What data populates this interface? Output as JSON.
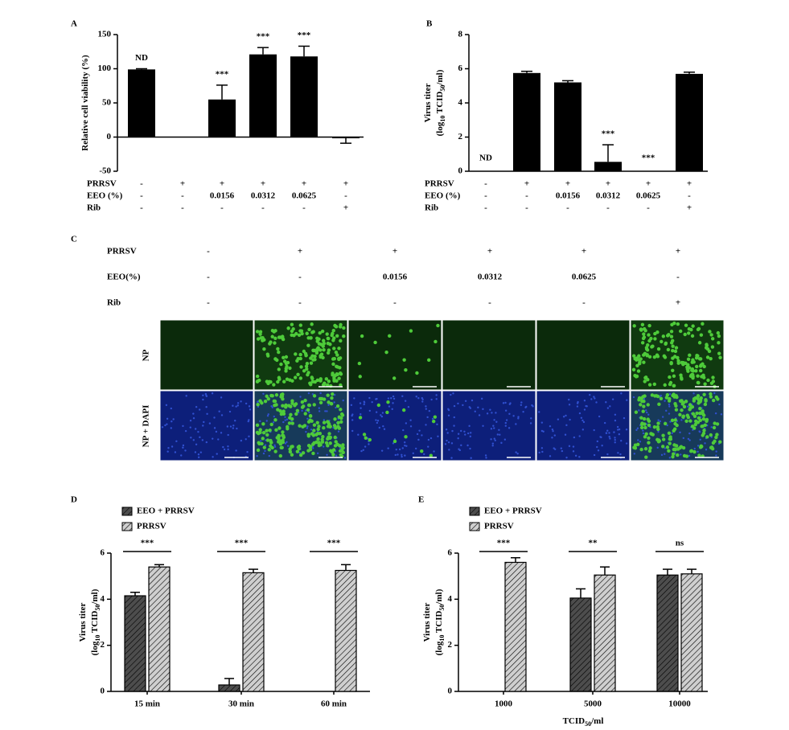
{
  "chart_data": [
    {
      "type": "bar",
      "panel": "A",
      "ylabel": [
        [
          "Relative cell viability (%)"
        ]
      ],
      "categories": [
        null,
        null,
        null,
        null,
        null,
        null
      ],
      "values": [
        99,
        null,
        55,
        121,
        118,
        -1
      ],
      "errors": [
        1,
        null,
        21,
        10,
        15,
        8
      ],
      "color": "#000000",
      "significance": [
        "ND",
        null,
        "***",
        "***",
        "***",
        null
      ],
      "conditions": [
        {
          "label": "PRRSV",
          "values": [
            "-",
            "+",
            "+",
            "+",
            "+",
            "+"
          ]
        },
        {
          "label": "EEO (%)",
          "values": [
            "-",
            "-",
            "0.0156",
            "0.0312",
            "0.0625",
            "-"
          ]
        },
        {
          "label": "Rib",
          "values": [
            "-",
            "-",
            "-",
            "-",
            "-",
            "+"
          ]
        }
      ],
      "ylim": [
        -50,
        150
      ],
      "yticks": [
        -50,
        0,
        50,
        100,
        150
      ]
    },
    {
      "type": "bar",
      "panel": "B",
      "ylabel": [
        [
          "Virus titer"
        ],
        [
          "(log",
          "10",
          " TCID",
          "50",
          "/ml)"
        ]
      ],
      "categories": [
        null,
        null,
        null,
        null,
        null,
        null
      ],
      "values": [
        null,
        5.75,
        5.2,
        0.55,
        null,
        5.7
      ],
      "errors": [
        null,
        0.1,
        0.1,
        1.0,
        null,
        0.1
      ],
      "color": "#000000",
      "significance": [
        "ND",
        null,
        null,
        "***",
        "***",
        null
      ],
      "conditions": [
        {
          "label": "PRRSV",
          "values": [
            "-",
            "+",
            "+",
            "+",
            "+",
            "+"
          ]
        },
        {
          "label": "EEO (%)",
          "values": [
            "-",
            "-",
            "0.0156",
            "0.0312",
            "0.0625",
            "-"
          ]
        },
        {
          "label": "Rib",
          "values": [
            "-",
            "-",
            "-",
            "-",
            "-",
            "+"
          ]
        }
      ],
      "ylim": [
        0,
        8
      ],
      "yticks": [
        0,
        2,
        4,
        6,
        8
      ]
    },
    {
      "type": "bar",
      "panel": "D",
      "ylabel": [
        [
          "Virus titer"
        ],
        [
          "(log",
          "10",
          " TCID",
          "50",
          "/ml)"
        ]
      ],
      "categories": [
        "15 min",
        "30 min",
        "60 min"
      ],
      "series": [
        {
          "name": "EEO + PRRSV",
          "color": "#4d4d4d",
          "values": [
            4.15,
            0.28,
            null
          ],
          "errors": [
            0.15,
            0.28,
            null
          ]
        },
        {
          "name": "PRRSV",
          "color": "#cfcfcf",
          "values": [
            5.4,
            5.15,
            5.25
          ],
          "errors": [
            0.1,
            0.15,
            0.25
          ]
        }
      ],
      "significance": [
        "***",
        "***",
        "***"
      ],
      "ylim": [
        0,
        6
      ],
      "yticks": [
        0,
        2,
        4,
        6
      ]
    },
    {
      "type": "bar",
      "panel": "E",
      "ylabel": [
        [
          "Virus titer"
        ],
        [
          "(log",
          "10",
          " TCID",
          "50",
          "/ml)"
        ]
      ],
      "xlabel": [
        "TCID",
        "50",
        "/ml"
      ],
      "categories": [
        "1000",
        "5000",
        "10000"
      ],
      "series": [
        {
          "name": "EEO + PRRSV",
          "color": "#4d4d4d",
          "values": [
            null,
            4.05,
            5.05
          ],
          "errors": [
            null,
            0.4,
            0.25
          ]
        },
        {
          "name": "PRRSV",
          "color": "#cfcfcf",
          "values": [
            5.6,
            5.05,
            5.1
          ],
          "errors": [
            0.2,
            0.35,
            0.2
          ]
        }
      ],
      "significance": [
        "***",
        "**",
        "ns"
      ],
      "ylim": [
        0,
        6
      ],
      "yticks": [
        0,
        2,
        4,
        6
      ]
    }
  ],
  "image_panel": {
    "panel": "C",
    "rows": [
      {
        "label": "PRRSV",
        "values": [
          "-",
          "+",
          "+",
          "+",
          "+",
          "+"
        ]
      },
      {
        "label": "EEO(%)",
        "values": [
          "-",
          "-",
          "0.0156",
          "0.0312",
          "0.0625",
          "-"
        ]
      },
      {
        "label": "Rib",
        "values": [
          "-",
          "-",
          "-",
          "-",
          "-",
          "+"
        ]
      }
    ],
    "image_rows": [
      "NP",
      "NP + DAPI"
    ]
  }
}
